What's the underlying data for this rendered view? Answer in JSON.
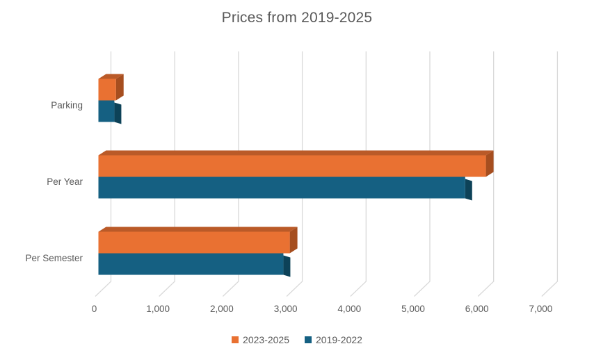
{
  "chart_data": {
    "type": "bar",
    "orientation": "horizontal",
    "style": "3d",
    "title": "Prices from 2019-2025",
    "categories": [
      "Parking",
      "Per Year",
      "Per Semester"
    ],
    "series": [
      {
        "name": "2023-2025",
        "color": "#E97132",
        "color_top_face": "#BA5A28",
        "color_side_face": "#A64E1F",
        "values": [
          275,
          6075,
          3000
        ]
      },
      {
        "name": "2019-2022",
        "color": "#156082",
        "color_side_face": "#0D4258",
        "values": [
          250,
          5750,
          2900
        ]
      }
    ],
    "xlabel": "",
    "ylabel": "",
    "xlim": [
      0,
      7000
    ],
    "xticks": [
      0,
      1000,
      2000,
      3000,
      4000,
      5000,
      6000,
      7000
    ],
    "xtick_labels": [
      "0",
      "1,000",
      "2,000",
      "3,000",
      "4,000",
      "5,000",
      "6,000",
      "7,000"
    ],
    "grid": "vertical-gridlines-on",
    "gridline_color": "#D9D9D9",
    "text_color": "#595959",
    "legend_position": "bottom"
  }
}
